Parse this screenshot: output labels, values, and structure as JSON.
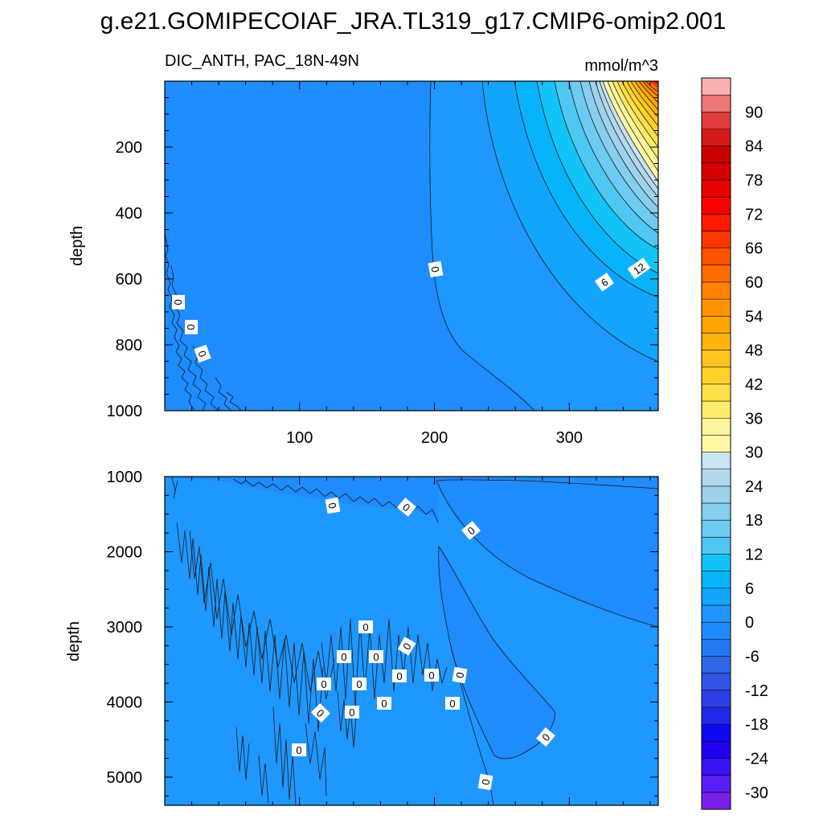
{
  "chart_data": {
    "type": "contour",
    "title": "g.e21.GOMIPECOIAF_JRA.TL319_g17.CMIP6-omip2.001",
    "variable": "DIC_ANTH",
    "region": "PAC_18N-49N",
    "subtitle_left": "DIC_ANTH, PAC_18N-49N",
    "units": "mmol/m^3",
    "xlim": [
      0,
      366
    ],
    "x_ticks": [
      100,
      200,
      300
    ],
    "colorbar": {
      "levels": [
        -33,
        -30,
        -27,
        -24,
        -21,
        -18,
        -15,
        -12,
        -9,
        -6,
        -3,
        0,
        3,
        6,
        9,
        12,
        15,
        18,
        21,
        24,
        27,
        30,
        33,
        36,
        39,
        42,
        45,
        48,
        51,
        54,
        57,
        60,
        63,
        66,
        69,
        72,
        75,
        78,
        81,
        84,
        87,
        90,
        93
      ],
      "labels": [
        "90",
        "84",
        "78",
        "72",
        "66",
        "60",
        "54",
        "48",
        "42",
        "36",
        "30",
        "24",
        "18",
        "12",
        "6",
        "0",
        "-6",
        "-12",
        "-18",
        "-24",
        "-30"
      ],
      "colors": [
        "#7b1fe8",
        "#5820f6",
        "#3812f0",
        "#1f00ef",
        "#1008f2",
        "#2227e6",
        "#2e3fe6",
        "#2f53e3",
        "#2f67e8",
        "#2479f0",
        "#1e8bff",
        "#1f96ff",
        "#12a5fb",
        "#07b4fa",
        "#12c3f7",
        "#4ec7f3",
        "#6dcbf2",
        "#87cdee",
        "#9dd1ec",
        "#b2d8ec",
        "#c9e4f3",
        "#fff7a6",
        "#fff59a",
        "#ffeb69",
        "#ffdf4a",
        "#ffd32c",
        "#ffc623",
        "#ffb60c",
        "#ffa500",
        "#ff9400",
        "#ff8200",
        "#ff6d00",
        "#ff5200",
        "#ff3800",
        "#ff1a00",
        "#ff0000",
        "#e80000",
        "#d60000",
        "#ca0000",
        "#d51a1a",
        "#e03c3c",
        "#ee7676",
        "#f8b1b1"
      ]
    },
    "panels": [
      {
        "name": "upper",
        "ylabel": "depth",
        "ylim": [
          0,
          1000
        ],
        "y_reversed": true,
        "y_ticks": [
          200,
          400,
          600,
          800,
          1000
        ],
        "x_tick_labels_shown": true,
        "contour_labels": [
          "0",
          "0",
          "0",
          "0",
          "6",
          "12"
        ]
      },
      {
        "name": "lower",
        "ylabel": "depth",
        "ylim": [
          1000,
          5375
        ],
        "y_reversed": true,
        "y_ticks": [
          1000,
          2000,
          3000,
          4000,
          5000
        ],
        "x_tick_labels_shown": false,
        "contour_labels": [
          "0",
          "0",
          "0",
          "0",
          "0",
          "0",
          "0",
          "0",
          "0",
          "0",
          "0",
          "0",
          "0",
          "0",
          "0",
          "0",
          "0",
          "0"
        ]
      }
    ]
  }
}
